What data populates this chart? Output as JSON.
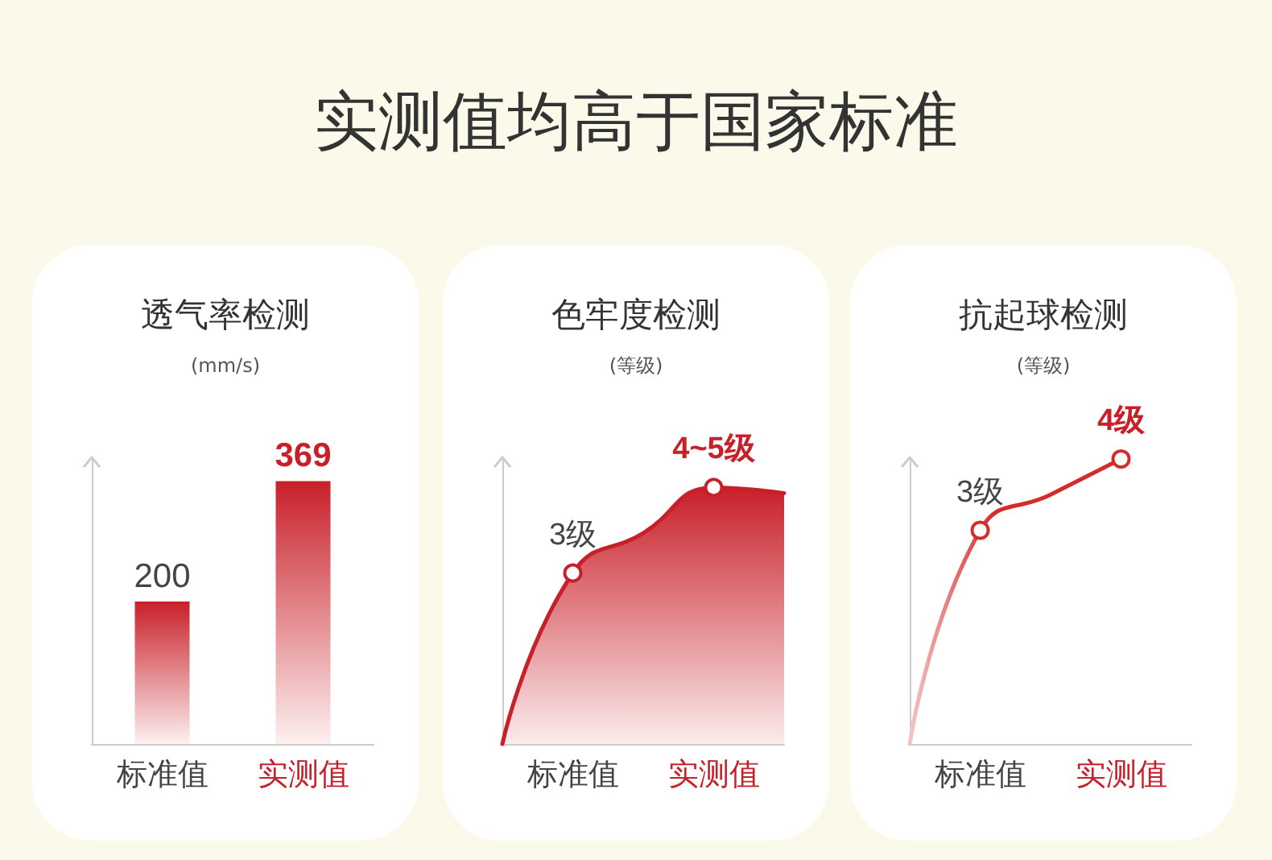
{
  "chart_data": [
    {
      "type": "other",
      "title": "实测值均高于国家标准"
    },
    {
      "type": "bar",
      "title": "透气率检测",
      "ylabel": "(mm/s)",
      "categories": [
        "标准值",
        "实测值"
      ],
      "values": [
        200,
        369
      ],
      "colors": [
        "#c8202a",
        "#c8202a"
      ],
      "data_labels": true
    },
    {
      "type": "area",
      "title": "色牢度检测",
      "ylabel": "(等级)",
      "categories": [
        null,
        "标准值",
        null,
        "实测值",
        null
      ],
      "values": [
        0,
        3,
        3.7,
        4.5,
        4.4
      ],
      "value_labels": [
        null,
        "3级",
        null,
        "4~5级",
        null
      ],
      "color": "#c8202a"
    },
    {
      "type": "line",
      "title": "抗起球检测",
      "ylabel": "(等级)",
      "categories": [
        null,
        "标准值",
        null,
        "实测值",
        null
      ],
      "values": [
        0,
        3,
        3.5,
        4,
        null
      ],
      "value_labels": [
        null,
        "3级",
        null,
        "4级",
        null
      ],
      "color": "#d42b2b"
    }
  ]
}
